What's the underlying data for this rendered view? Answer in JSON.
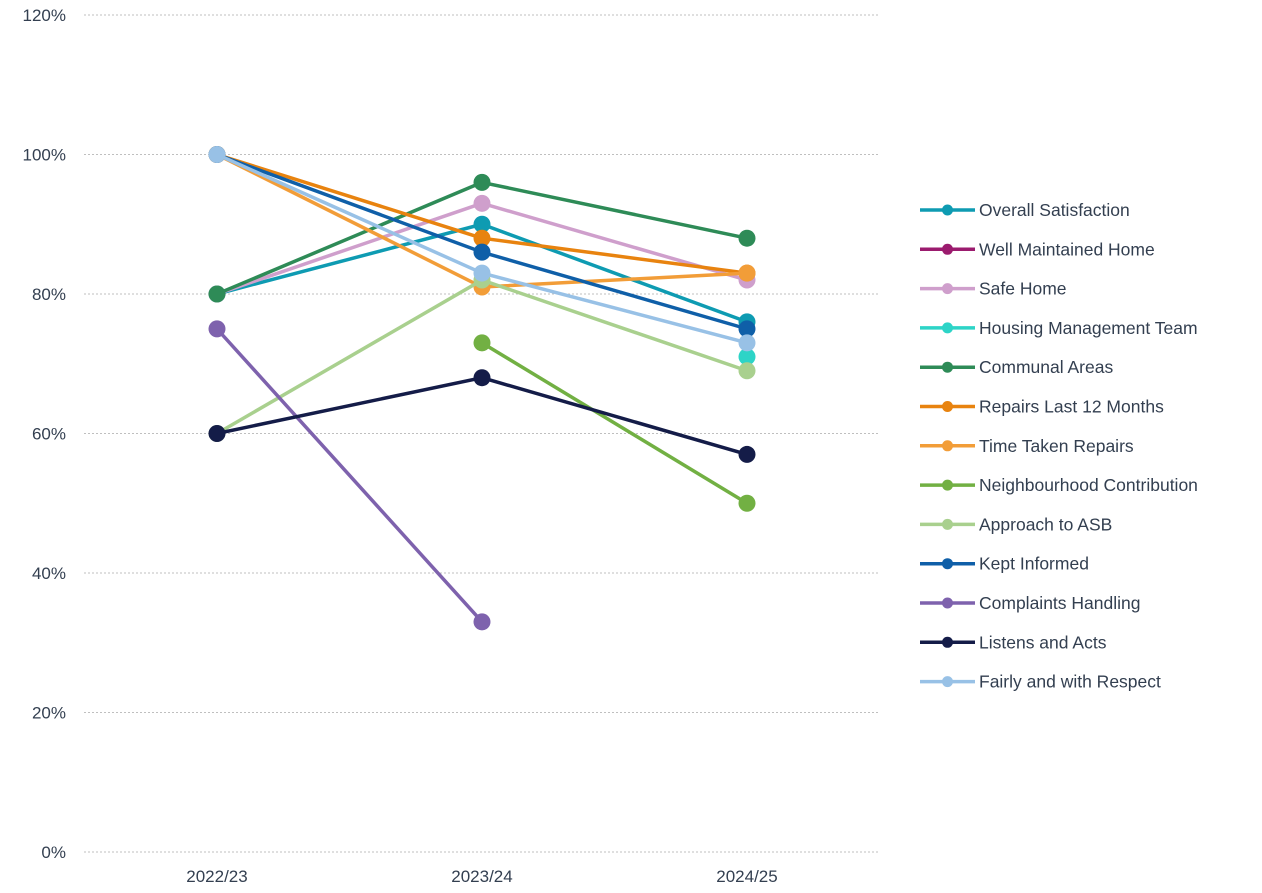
{
  "chart_data": {
    "type": "line",
    "title": "",
    "xlabel": "",
    "ylabel": "",
    "categories": [
      "2022/23",
      "2023/24",
      "2024/25"
    ],
    "ylim": [
      0,
      120
    ],
    "yticks": [
      0,
      20,
      40,
      60,
      80,
      100,
      120
    ],
    "ytick_labels": [
      "0%",
      "20%",
      "40%",
      "60%",
      "80%",
      "100%",
      "120%"
    ],
    "grid": true,
    "legend": "right",
    "series": [
      {
        "name": "Overall Satisfaction",
        "color": "#0e9bb2",
        "values": [
          80,
          90,
          76
        ]
      },
      {
        "name": "Well Maintained Home",
        "color": "#9b1b6e",
        "values": [
          null,
          null,
          null
        ]
      },
      {
        "name": "Safe Home",
        "color": "#cf9fcc",
        "values": [
          80,
          93,
          82
        ]
      },
      {
        "name": "Housing Management Team",
        "color": "#2dd4c7",
        "values": [
          null,
          null,
          71
        ]
      },
      {
        "name": "Communal Areas",
        "color": "#2e8b57",
        "values": [
          80,
          96,
          88
        ]
      },
      {
        "name": "Repairs Last 12 Months",
        "color": "#e8830f",
        "values": [
          100,
          88,
          83
        ]
      },
      {
        "name": "Time Taken Repairs",
        "color": "#f29d38",
        "values": [
          100,
          81,
          83
        ]
      },
      {
        "name": "Neighbourhood Contribution",
        "color": "#72b043",
        "values": [
          null,
          73,
          50
        ]
      },
      {
        "name": "Approach to ASB",
        "color": "#a9d08e",
        "values": [
          60,
          82,
          69
        ]
      },
      {
        "name": "Kept Informed",
        "color": "#0f5fa8",
        "values": [
          100,
          86,
          75
        ]
      },
      {
        "name": "Complaints Handling",
        "color": "#7e62ad",
        "values": [
          75,
          33,
          null
        ]
      },
      {
        "name": "Listens and Acts",
        "color": "#141c48",
        "values": [
          60,
          68,
          57
        ]
      },
      {
        "name": "Fairly and with Respect",
        "color": "#98c1e6",
        "values": [
          100,
          83,
          73
        ]
      }
    ]
  }
}
